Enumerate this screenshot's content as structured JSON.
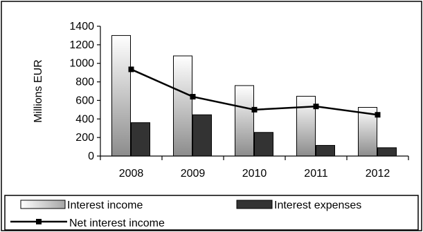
{
  "chart_data": {
    "type": "bar",
    "categories": [
      "2008",
      "2009",
      "2010",
      "2011",
      "2012"
    ],
    "series": [
      {
        "name": "Interest income",
        "kind": "bar",
        "values": [
          1300,
          1080,
          760,
          645,
          525
        ],
        "color": "#d9d9d9"
      },
      {
        "name": "Interest expenses",
        "kind": "bar",
        "values": [
          360,
          445,
          255,
          115,
          90
        ],
        "color": "#333333"
      },
      {
        "name": "Net interest income",
        "kind": "line",
        "values": [
          935,
          640,
          500,
          535,
          445
        ],
        "color": "#000000"
      }
    ],
    "ylabel": "Millions EUR",
    "ylim": [
      0,
      1400
    ],
    "yticks": [
      "0",
      "200",
      "400",
      "600",
      "800",
      "1000",
      "1200",
      "1400"
    ],
    "grid": false,
    "legend": "bottom"
  }
}
